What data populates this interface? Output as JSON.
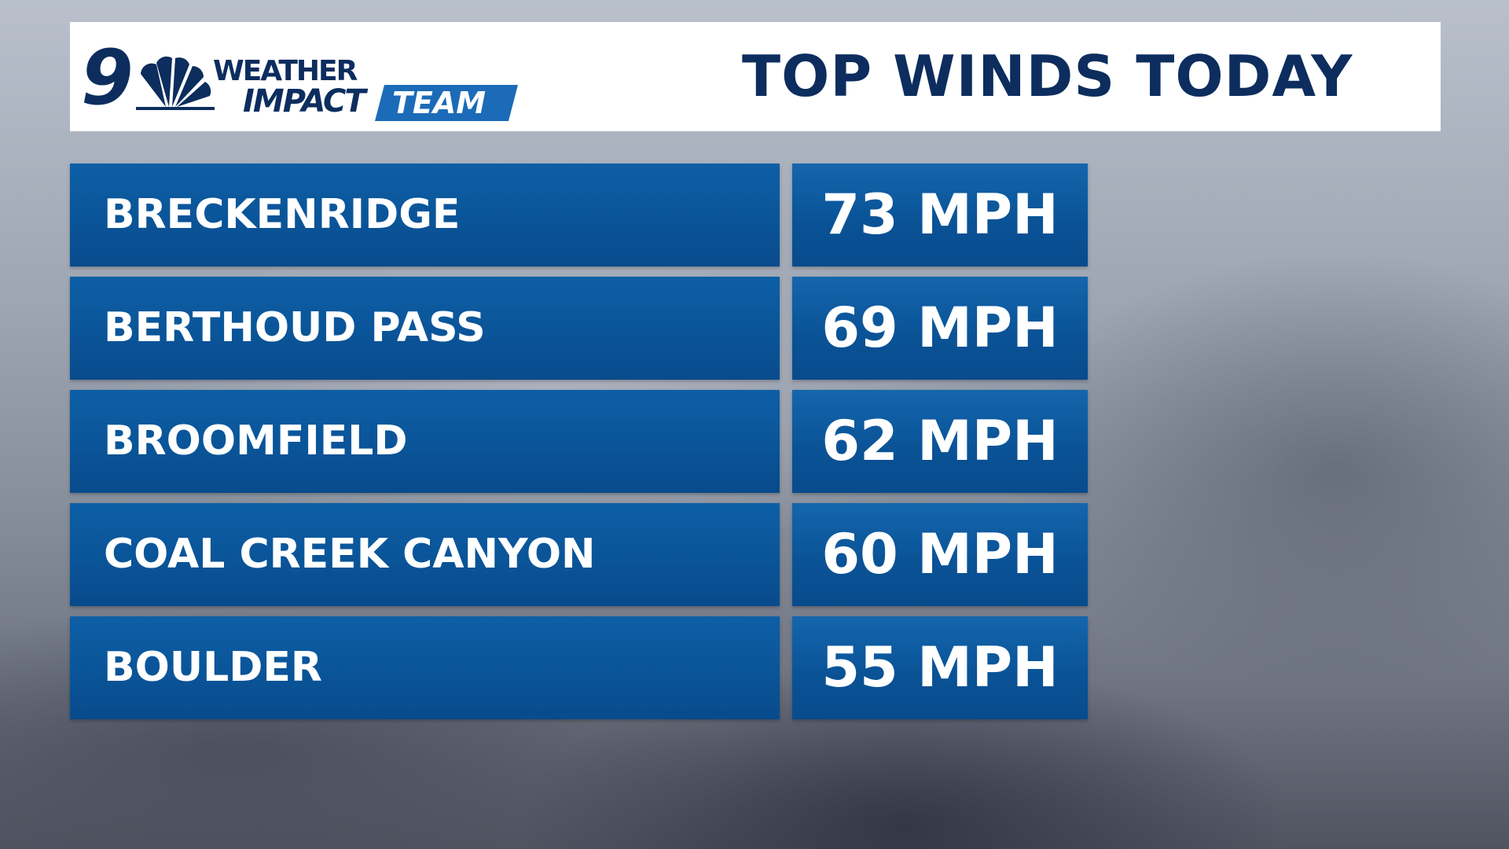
{
  "header": {
    "title": "TOP WINDS TODAY",
    "logo": {
      "channel": "9",
      "line1": "WEATHER",
      "line2": "IMPACT",
      "line3": "TEAM"
    }
  },
  "table": {
    "rows": [
      [
        "BRECKENRIDGE",
        "73 MPH"
      ],
      [
        "BERTHOUD PASS",
        "69 MPH"
      ],
      [
        "BROOMFIELD",
        "62 MPH"
      ],
      [
        "COAL CREEK CANYON",
        "60 MPH"
      ],
      [
        "BOULDER",
        "55 MPH"
      ]
    ]
  }
}
